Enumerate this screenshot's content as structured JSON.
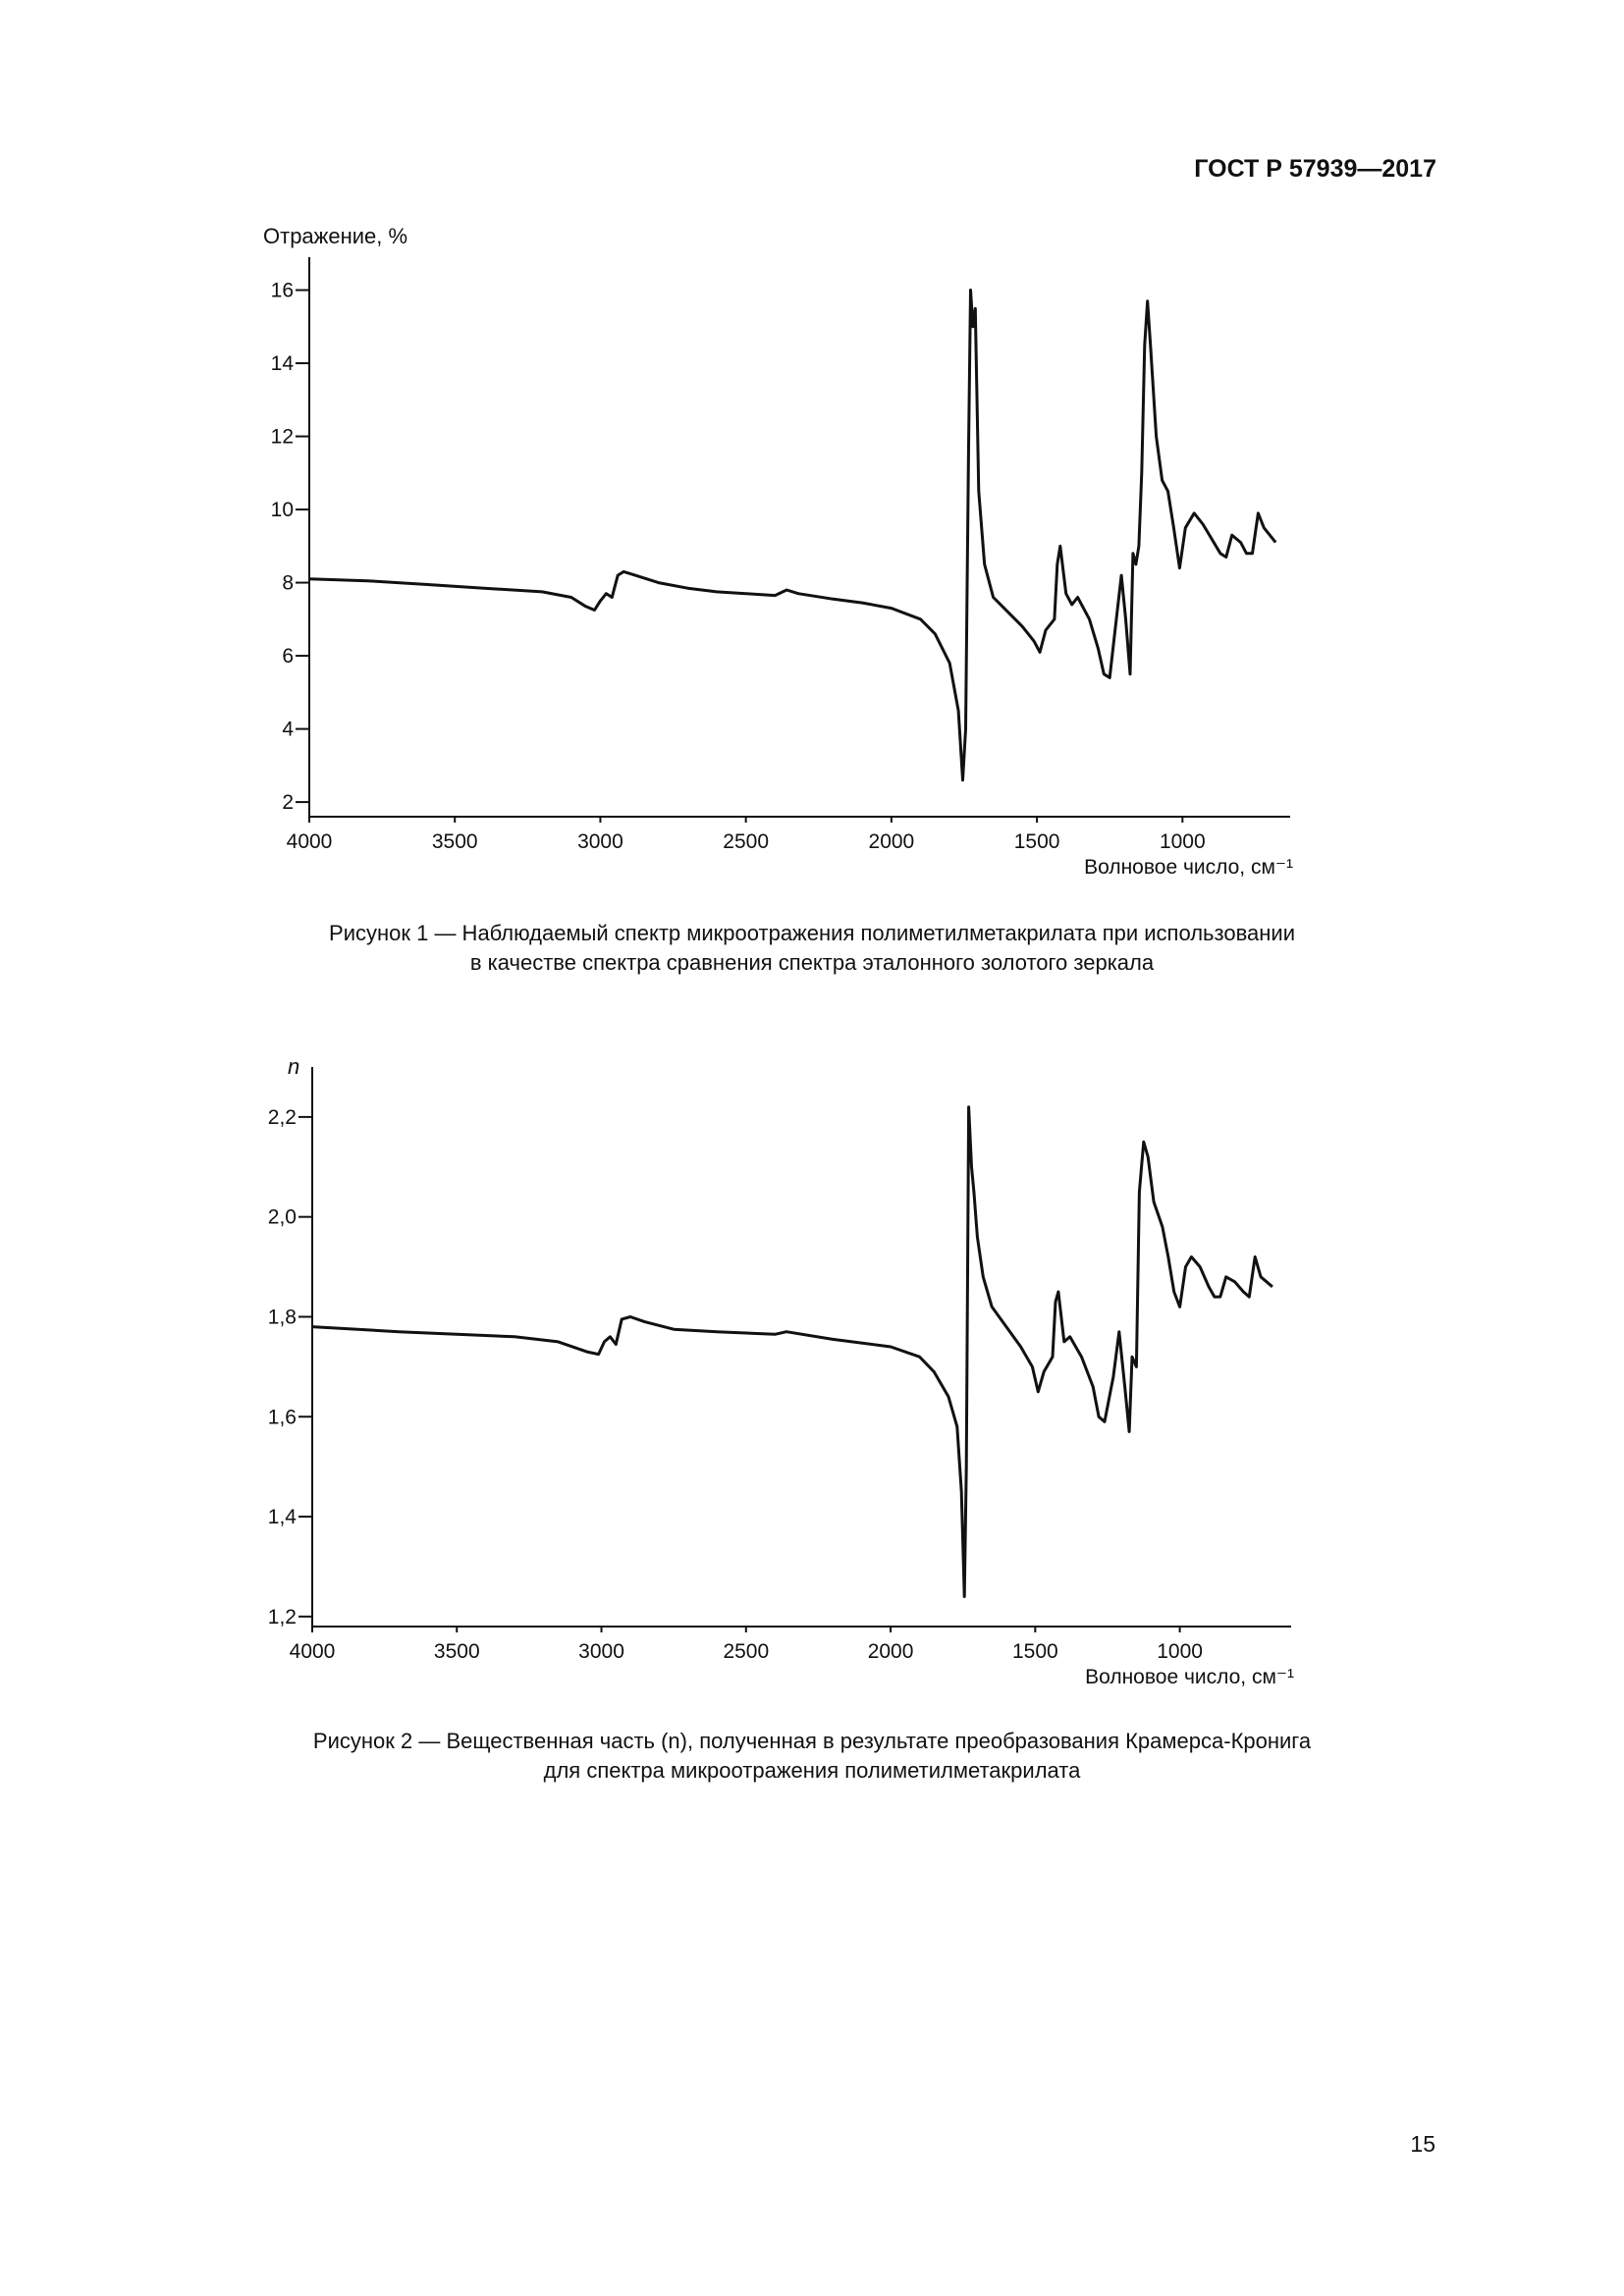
{
  "header": {
    "code": "ГОСТ Р 57939—2017"
  },
  "chart_data": [
    {
      "type": "line",
      "ylabel": "Отражение, %",
      "xlabel": "Волновое число, см⁻¹",
      "xlim": [
        4000,
        630
      ],
      "xticks": [
        4000,
        3500,
        3000,
        2500,
        2000,
        1500,
        1000
      ],
      "ylim": [
        1.6,
        16.9
      ],
      "yticks": [
        2,
        4,
        6,
        8,
        10,
        12,
        14,
        16
      ],
      "color": "#111111",
      "x": [
        4000,
        3800,
        3600,
        3400,
        3200,
        3100,
        3050,
        3020,
        3000,
        2980,
        2960,
        2940,
        2920,
        2880,
        2800,
        2700,
        2600,
        2500,
        2400,
        2360,
        2320,
        2200,
        2100,
        2000,
        1900,
        1850,
        1800,
        1770,
        1755,
        1745,
        1735,
        1728,
        1720,
        1712,
        1700,
        1680,
        1650,
        1600,
        1550,
        1510,
        1490,
        1470,
        1440,
        1430,
        1420,
        1400,
        1380,
        1360,
        1320,
        1290,
        1270,
        1250,
        1230,
        1210,
        1195,
        1180,
        1170,
        1160,
        1150,
        1140,
        1130,
        1120,
        1110,
        1090,
        1070,
        1050,
        1030,
        1010,
        990,
        960,
        930,
        900,
        870,
        850,
        830,
        800,
        780,
        760,
        740,
        720,
        700,
        680
      ],
      "values": [
        8.1,
        8.05,
        7.95,
        7.85,
        7.75,
        7.6,
        7.35,
        7.25,
        7.5,
        7.7,
        7.6,
        8.2,
        8.3,
        8.2,
        8.0,
        7.85,
        7.75,
        7.7,
        7.65,
        7.8,
        7.7,
        7.55,
        7.45,
        7.3,
        7.0,
        6.6,
        5.8,
        4.5,
        2.6,
        4.0,
        11.5,
        16.0,
        15.0,
        15.5,
        10.5,
        8.5,
        7.6,
        7.2,
        6.8,
        6.4,
        6.1,
        6.7,
        7.0,
        8.5,
        9.0,
        7.7,
        7.4,
        7.6,
        7.0,
        6.2,
        5.5,
        5.4,
        6.8,
        8.2,
        7.0,
        5.5,
        8.8,
        8.5,
        9.0,
        11.0,
        14.5,
        15.7,
        14.5,
        12.0,
        10.8,
        10.5,
        9.5,
        8.4,
        9.5,
        9.9,
        9.6,
        9.2,
        8.8,
        8.7,
        9.3,
        9.1,
        8.8,
        8.8,
        9.9,
        9.5,
        9.3,
        9.1
      ]
    },
    {
      "type": "line",
      "ylabel": "n",
      "xlabel": "Волновое число, см⁻¹",
      "xlim": [
        4000,
        615
      ],
      "xticks": [
        4000,
        3500,
        3000,
        2500,
        2000,
        1500,
        1000
      ],
      "ylim": [
        1.18,
        2.3
      ],
      "yticks": [
        {
          "value": 1.2,
          "label": "1,2"
        },
        {
          "value": 1.4,
          "label": "1,4"
        },
        {
          "value": 1.6,
          "label": "1,6"
        },
        {
          "value": 1.8,
          "label": "1,8"
        },
        {
          "value": 2.0,
          "label": "2,0"
        },
        {
          "value": 2.2,
          "label": "2,2"
        }
      ],
      "color": "#111111",
      "x": [
        4000,
        3700,
        3500,
        3300,
        3150,
        3050,
        3010,
        2990,
        2970,
        2950,
        2930,
        2900,
        2850,
        2750,
        2600,
        2400,
        2360,
        2200,
        2000,
        1900,
        1850,
        1800,
        1770,
        1755,
        1745,
        1738,
        1730,
        1720,
        1712,
        1700,
        1680,
        1650,
        1600,
        1550,
        1510,
        1490,
        1470,
        1440,
        1430,
        1420,
        1400,
        1380,
        1340,
        1300,
        1280,
        1260,
        1230,
        1210,
        1190,
        1175,
        1165,
        1150,
        1140,
        1125,
        1110,
        1090,
        1060,
        1040,
        1020,
        1000,
        980,
        960,
        930,
        900,
        880,
        860,
        840,
        810,
        780,
        760,
        740,
        720,
        700,
        680
      ],
      "values": [
        1.78,
        1.77,
        1.765,
        1.76,
        1.75,
        1.73,
        1.725,
        1.75,
        1.76,
        1.745,
        1.795,
        1.8,
        1.79,
        1.775,
        1.77,
        1.765,
        1.77,
        1.755,
        1.74,
        1.72,
        1.69,
        1.64,
        1.58,
        1.45,
        1.24,
        1.5,
        2.22,
        2.1,
        2.05,
        1.96,
        1.88,
        1.82,
        1.78,
        1.74,
        1.7,
        1.65,
        1.69,
        1.72,
        1.83,
        1.85,
        1.75,
        1.76,
        1.72,
        1.66,
        1.6,
        1.59,
        1.68,
        1.77,
        1.66,
        1.57,
        1.72,
        1.7,
        2.05,
        2.15,
        2.12,
        2.03,
        1.98,
        1.92,
        1.85,
        1.82,
        1.9,
        1.92,
        1.9,
        1.86,
        1.84,
        1.84,
        1.88,
        1.87,
        1.85,
        1.84,
        1.92,
        1.88,
        1.87,
        1.86
      ]
    }
  ],
  "captions": [
    [
      "Рисунок 1 — Наблюдаемый спектр микроотражения полиметилметакрилата при использовании",
      "в качестве спектра сравнения спектра эталонного золотого зеркала"
    ],
    [
      "Рисунок 2 — Вещественная часть (n), полученная в результате преобразования Крамерса-Кронига",
      "для спектра микроотражения полиметилметакрилата"
    ]
  ],
  "page_number": "15"
}
